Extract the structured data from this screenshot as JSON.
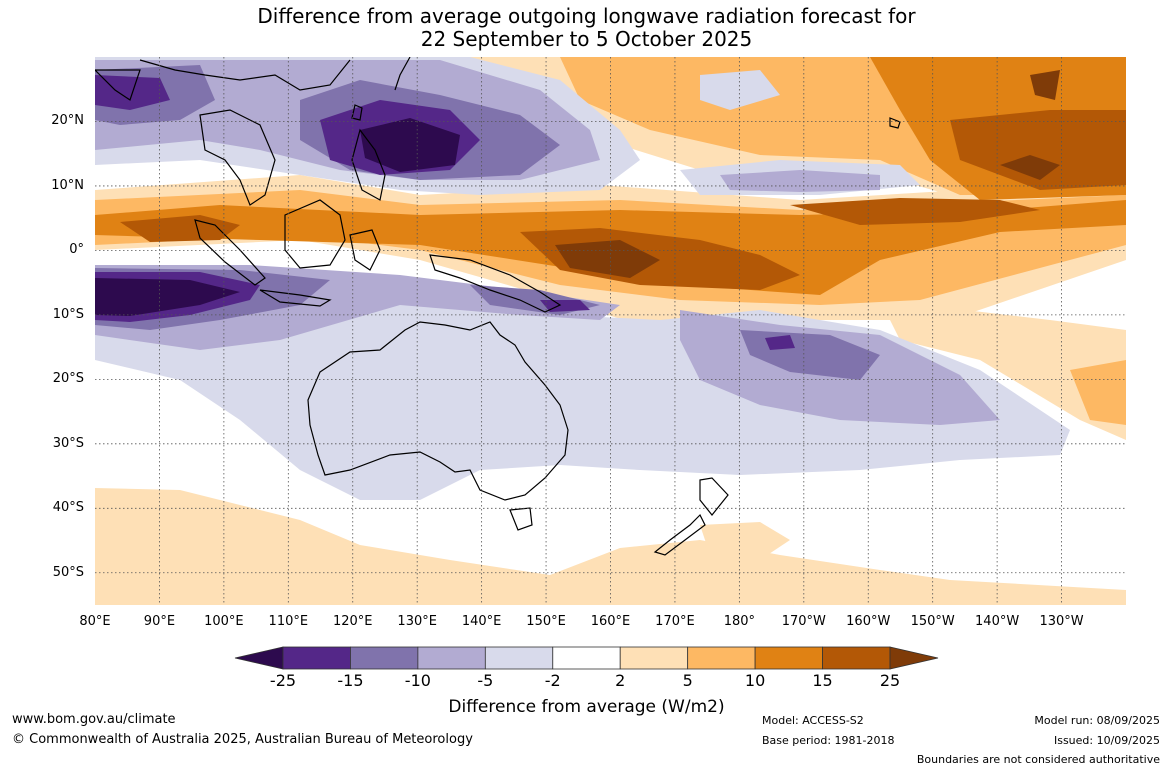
{
  "title": {
    "line1": "Difference from average outgoing longwave radiation forecast for",
    "line2": "22 September to 5 October 2025"
  },
  "map": {
    "latitude_labels": [
      "20°N",
      "10°N",
      "0°",
      "10°S",
      "20°S",
      "30°S",
      "40°S",
      "50°S"
    ],
    "longitude_labels": [
      "80°E",
      "90°E",
      "100°E",
      "110°E",
      "120°E",
      "130°E",
      "140°E",
      "150°E",
      "160°E",
      "170°E",
      "180°",
      "170°W",
      "160°W",
      "150°W",
      "140°W",
      "130°W"
    ],
    "lat_range": [
      -55,
      30
    ],
    "lon_range": [
      80,
      240
    ],
    "grid": true
  },
  "colorbar": {
    "ticks": [
      "-25",
      "-15",
      "-10",
      "-5",
      "-2",
      "2",
      "5",
      "10",
      "15",
      "25"
    ],
    "colors": [
      "#2d0a4e",
      "#542788",
      "#8073ac",
      "#b2abd2",
      "#d8daeb",
      "#ffffff",
      "#fee0b6",
      "#fdb863",
      "#e08214",
      "#b35806",
      "#7f3b08"
    ],
    "title": "Difference from average (W/m2)"
  },
  "footer": {
    "website": "www.bom.gov.au/climate",
    "copyright": "© Commonwealth of Australia 2025, Australian Bureau of Meteorology",
    "model": "Model: ACCESS-S2",
    "base_period": "Base period: 1981-2018",
    "model_run": "Model run: 08/09/2025",
    "issued": "Issued: 10/09/2025",
    "disclaimer": "Boundaries are not considered authoritative"
  }
}
